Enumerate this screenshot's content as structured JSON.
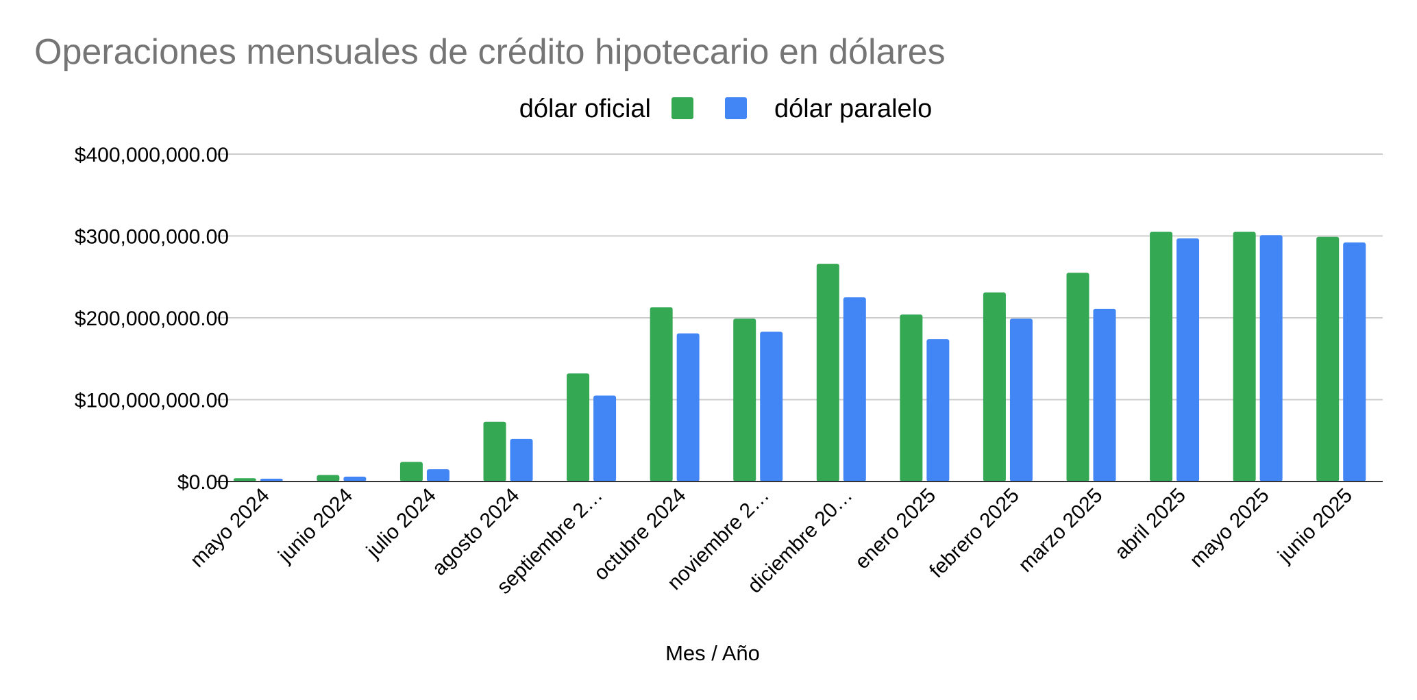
{
  "chart_data": {
    "type": "bar",
    "title": "Operaciones mensuales de crédito hipotecario en dólares",
    "xlabel": "Mes / Año",
    "ylabel": "",
    "ylim": [
      0,
      400000000
    ],
    "yticks": [
      0,
      100000000,
      200000000,
      300000000,
      400000000
    ],
    "ytick_labels": [
      "$0.00",
      "$100,000,000.00",
      "$200,000,000.00",
      "$300,000,000.00",
      "$400,000,000.00"
    ],
    "grid": true,
    "legend_position": "top",
    "categories": [
      "mayo 2024",
      "junio 2024",
      "julio 2024",
      "agosto 2024",
      "septiembre 2…",
      "octubre 2024",
      "noviembre 2…",
      "diciembre 20…",
      "enero 2025",
      "febrero 2025",
      "marzo 2025",
      "abril 2025",
      "mayo 2025",
      "junio 2025"
    ],
    "series": [
      {
        "name": "dólar oficial",
        "color": "#34a853",
        "values": [
          4000000,
          8000000,
          24000000,
          73000000,
          132000000,
          213000000,
          199000000,
          266000000,
          204000000,
          231000000,
          255000000,
          305000000,
          305000000,
          299000000
        ]
      },
      {
        "name": "dólar paralelo",
        "color": "#4285f4",
        "values": [
          3500000,
          6000000,
          15000000,
          52000000,
          105000000,
          181000000,
          183000000,
          225000000,
          174000000,
          199000000,
          211000000,
          297000000,
          301000000,
          292000000
        ]
      }
    ]
  }
}
